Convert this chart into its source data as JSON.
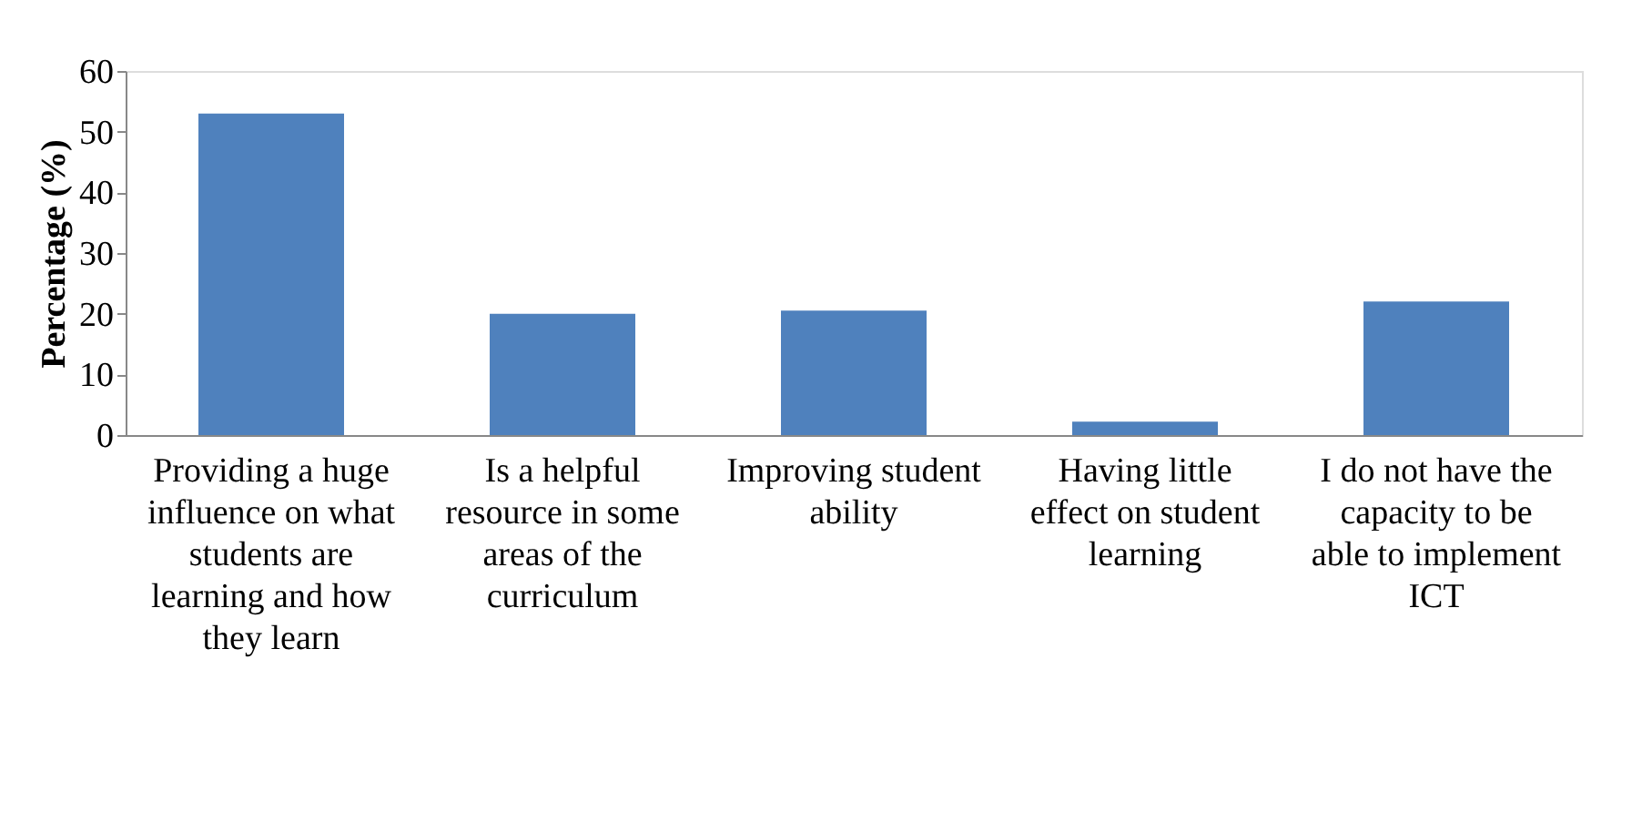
{
  "chart_data": {
    "type": "bar",
    "ylabel": "Percentage (%)",
    "categories": [
      "Providing a huge influence on what students are learning and how they learn",
      "Is a helpful resource in some areas of the curriculum",
      "Improving student ability",
      "Having little effect on student learning",
      "I do not have the capacity to be able to implement ICT"
    ],
    "values": [
      53,
      20,
      20.5,
      2.2,
      22
    ],
    "color": "#4f81bd",
    "ylim": [
      0,
      60
    ],
    "yticks": [
      0,
      10,
      20,
      30,
      40,
      50,
      60
    ],
    "grid": false
  }
}
